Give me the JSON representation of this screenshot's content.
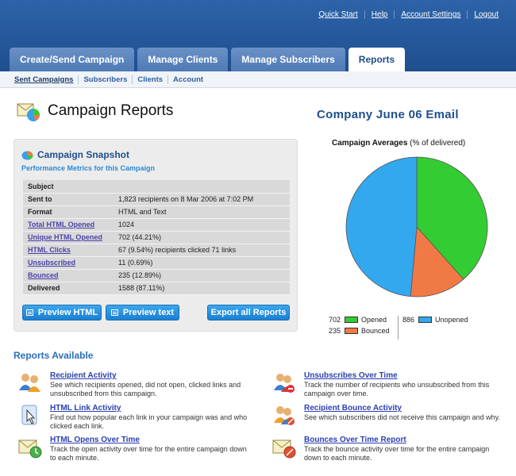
{
  "header": {
    "links": [
      "Quick Start",
      "Help",
      "Account Settings",
      "Logout"
    ],
    "tabs": [
      "Create/Send Campaign",
      "Manage Clients",
      "Manage Subscribers",
      "Reports"
    ],
    "active_tab": "Reports",
    "subnav": [
      "Sent Campaigns",
      "Subscribers",
      "Clients",
      "Account"
    ],
    "active_subnav": "Sent Campaigns"
  },
  "page": {
    "title": "Campaign Reports",
    "report_title": "Company June 06 Email"
  },
  "snapshot": {
    "title": "Campaign Snapshot",
    "subtitle": "Performance Metrics for this Campaign",
    "rows": [
      {
        "key": "Subject",
        "value": ""
      },
      {
        "key": "Sent to",
        "value": "1,823 recipients on 8 Mar 2006 at 7:02 PM"
      },
      {
        "key": "Format",
        "value": "HTML and Text"
      },
      {
        "key": "Total HTML Opened",
        "value": "1024"
      },
      {
        "key": "Unique HTML Opened",
        "value": "702 (44.21%)"
      },
      {
        "key": "HTML Clicks",
        "value": "67 (9.54%) recipients clicked 71 links"
      },
      {
        "key": "Unsubscribed",
        "value": "11 (0.69%)"
      },
      {
        "key": "Bounced",
        "value": "235 (12.89%)"
      },
      {
        "key": "Delivered",
        "value": "1588 (87.11%)"
      }
    ],
    "buttons": {
      "preview_html": "Preview HTML",
      "preview_text": "Preview text",
      "export": "Export all Reports"
    }
  },
  "chart_title": {
    "bold": "Campaign Averages",
    "rest": " (% of delivered)"
  },
  "chart_data": {
    "type": "pie",
    "title": "Campaign Averages (% of delivered)",
    "slices": [
      {
        "name": "Opened",
        "value": 702,
        "color": "#33cc33"
      },
      {
        "name": "Bounced",
        "value": 235,
        "color": "#f07a45"
      },
      {
        "name": "Unopened",
        "value": 886,
        "color": "#33a8ee"
      }
    ]
  },
  "legend": {
    "opened_value": "702",
    "opened_label": "Opened",
    "bounced_value": "235",
    "bounced_label": "Bounced",
    "unopened_value": "886",
    "unopened_label": "Unopened"
  },
  "reports": {
    "title": "Reports Available",
    "items": [
      {
        "label": "Recipient Activity",
        "desc": "See which recipients opened, did not open, clicked links and unsubscribed from this campaign.",
        "icon": "users-icon"
      },
      {
        "label": "HTML Link Activity",
        "desc": "Find out how popular each link in your campaign was and who clicked each link.",
        "icon": "link-cursor-icon"
      },
      {
        "label": "HTML Opens Over Time",
        "desc": "Track the open activity over time for the entire campaign down to each minute.",
        "icon": "envelope-clock-icon"
      },
      {
        "label": "Unsubscribes Over Time",
        "desc": "Track the number of recipients who unsubscribed from this campaign over time.",
        "icon": "user-remove-icon"
      },
      {
        "label": "Recipient Bounce Activity",
        "desc": "See which subscribers did not receive this campaign and why.",
        "icon": "user-bounce-icon"
      },
      {
        "label": "Bounces Over Time Report",
        "desc": "Track the bounce activity over time for the entire campaign down to each minute.",
        "icon": "envelope-bounce-icon"
      }
    ]
  }
}
